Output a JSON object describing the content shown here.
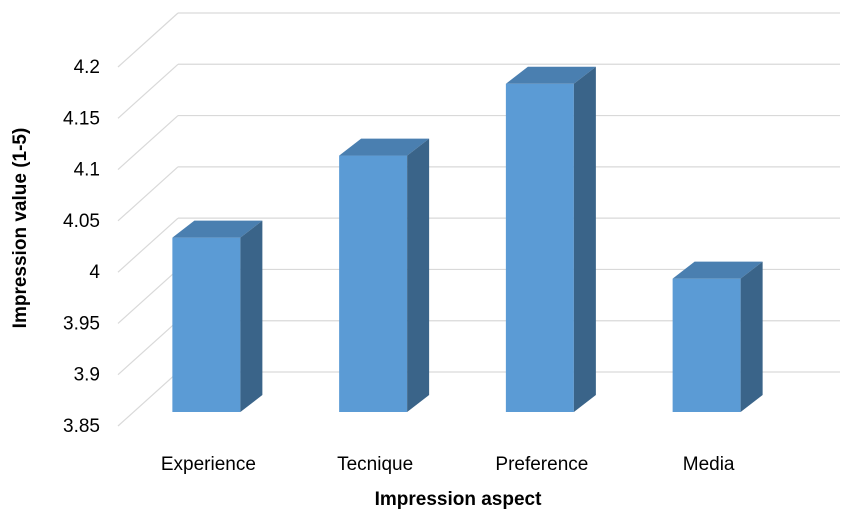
{
  "chart_data": {
    "type": "bar",
    "style": "3d-column",
    "title": "",
    "xlabel": "Impression aspect",
    "ylabel": "Impression value (1-5)",
    "categories": [
      "Experience",
      "Tecnique",
      "Preference",
      "Media"
    ],
    "values": [
      4.02,
      4.1,
      4.17,
      3.98
    ],
    "ylim": [
      3.85,
      4.2
    ],
    "yticks": [
      "3.85",
      "3.9",
      "3.95",
      "4",
      "4.05",
      "4.1",
      "4.15",
      "4.2"
    ],
    "grid": true,
    "legend": "none"
  },
  "colors": {
    "bar_front": "#5B9BD5",
    "bar_top": "#4A7FB0",
    "bar_side": "#3A6489",
    "gridline": "#D9D9D9"
  }
}
